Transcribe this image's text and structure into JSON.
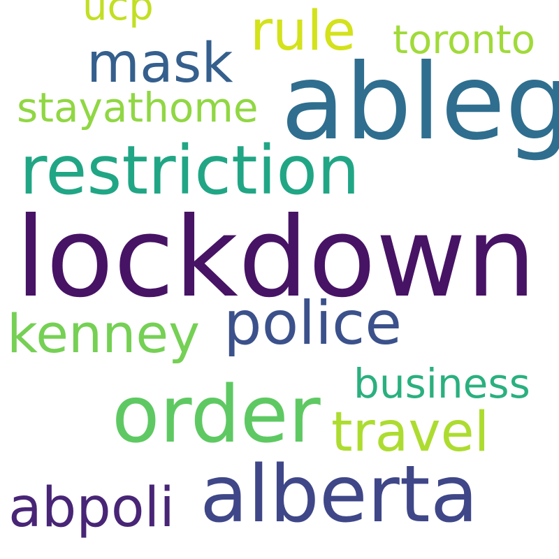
{
  "words": {
    "lockdown": {
      "text": "lockdown",
      "color": "#471365"
    },
    "ableg": {
      "text": "ableg",
      "color": "#2f6e8e"
    },
    "restriction": {
      "text": "restriction",
      "color": "#21a685"
    },
    "alberta": {
      "text": "alberta",
      "color": "#3f4788"
    },
    "order": {
      "text": "order",
      "color": "#5ec962"
    },
    "police": {
      "text": "police",
      "color": "#3b518b"
    },
    "kenney": {
      "text": "kenney",
      "color": "#75d054"
    },
    "mask": {
      "text": "mask",
      "color": "#355f8d"
    },
    "rule": {
      "text": "rule",
      "color": "#d3e21b"
    },
    "travel": {
      "text": "travel",
      "color": "#addc30"
    },
    "abpoli": {
      "text": "abpoli",
      "color": "#482576"
    },
    "stayathome": {
      "text": "stayathome",
      "color": "#90d743"
    },
    "business": {
      "text": "business",
      "color": "#2ab07f"
    },
    "toronto": {
      "text": "toronto",
      "color": "#a0da39"
    },
    "ucp": {
      "text": "ucp",
      "color": "#c2df23"
    }
  }
}
